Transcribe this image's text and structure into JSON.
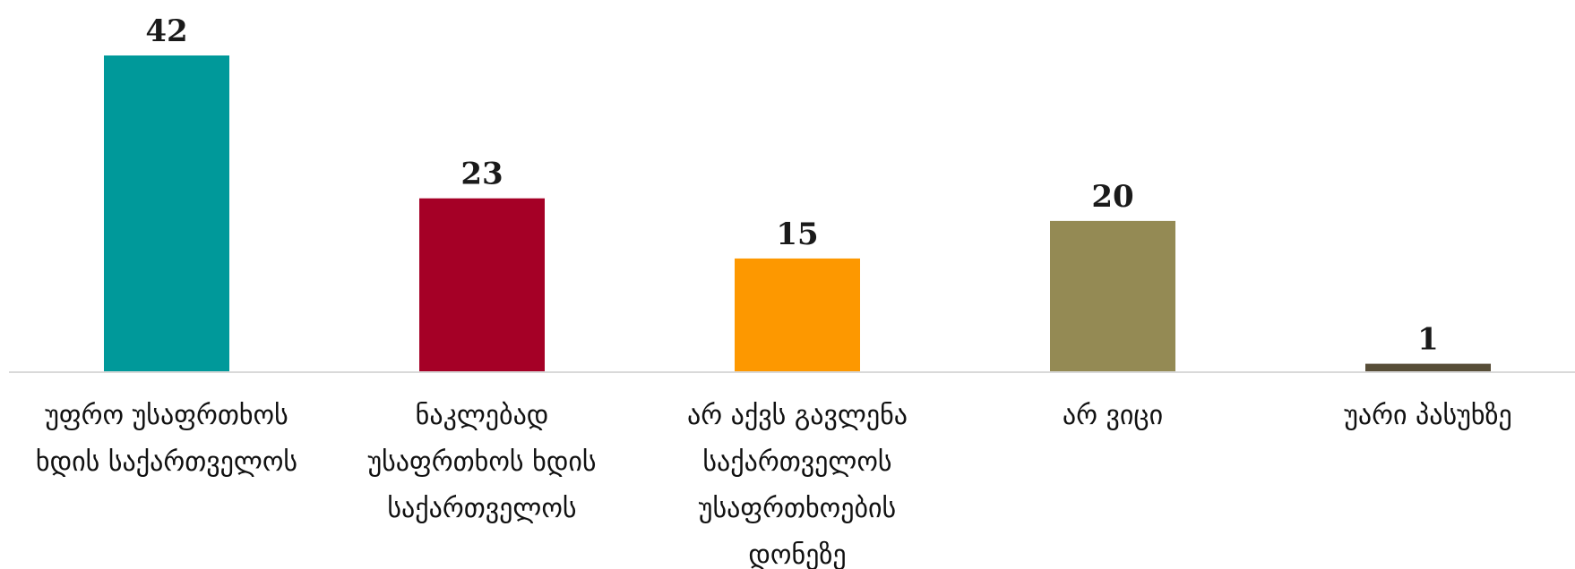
{
  "chart_data": {
    "type": "bar",
    "categories": [
      [
        "უფრო უსაფრთხოს",
        "ხდის საქართველოს"
      ],
      [
        "ნაკლებად",
        "უსაფრთხოს ხდის",
        "საქართველოს"
      ],
      [
        "არ აქვს გავლენა",
        "საქართველოს",
        "უსაფრთხოების",
        "დონეზე"
      ],
      [
        "არ ვიცი"
      ],
      [
        "უარი პასუხზე"
      ]
    ],
    "values": [
      42,
      23,
      15,
      20,
      1
    ],
    "colors": [
      "#00999a",
      "#a50026",
      "#fd9800",
      "#948a54",
      "#574d37"
    ],
    "title": "",
    "xlabel": "",
    "ylabel": "",
    "ylim": [
      0,
      42
    ],
    "grid": false,
    "legend": "none"
  }
}
